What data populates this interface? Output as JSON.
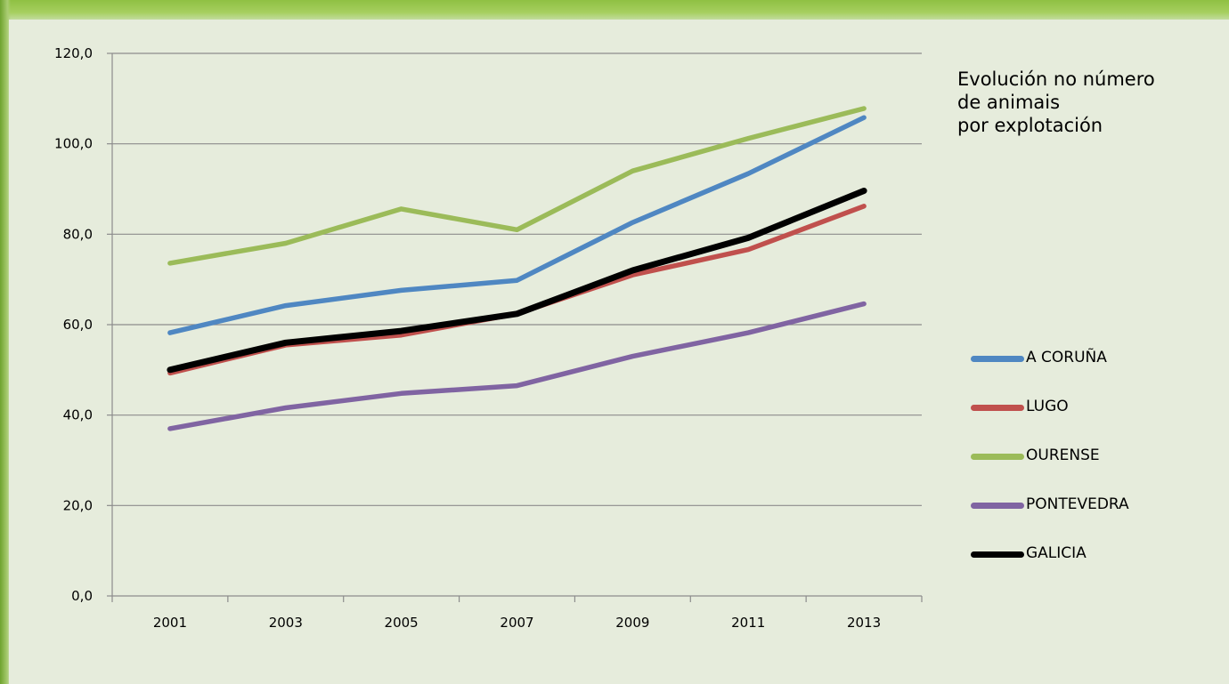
{
  "chart_data": {
    "type": "line",
    "title_lines": [
      "Evolución no número",
      "de animais",
      "por explotación"
    ],
    "categories": [
      "2001",
      "2003",
      "2005",
      "2007",
      "2009",
      "2011",
      "2013"
    ],
    "y_tick_labels": [
      "0,0",
      "20,0",
      "40,0",
      "60,0",
      "80,0",
      "100,0",
      "120,0"
    ],
    "ylim": [
      0,
      120
    ],
    "grid": true,
    "legend_position": "right",
    "series": [
      {
        "name": "A CORUÑA",
        "color": "#4f87c2",
        "values": [
          58.2,
          64.2,
          67.6,
          69.8,
          82.6,
          93.4,
          105.8
        ]
      },
      {
        "name": "LUGO",
        "color": "#c0504d",
        "values": [
          49.3,
          55.5,
          57.7,
          62.4,
          71.0,
          76.6,
          86.2
        ]
      },
      {
        "name": "OURENSE",
        "color": "#9bbb59",
        "values": [
          73.6,
          78.0,
          85.6,
          81.0,
          94.0,
          101.2,
          107.8
        ]
      },
      {
        "name": "PONTEVEDRA",
        "color": "#8064a2",
        "values": [
          37.0,
          41.6,
          44.8,
          46.5,
          53.0,
          58.2,
          64.6
        ]
      },
      {
        "name": "GALICIA",
        "color": "#000000",
        "values": [
          50.0,
          56.0,
          58.6,
          62.4,
          72.0,
          79.2,
          89.6
        ]
      }
    ]
  }
}
